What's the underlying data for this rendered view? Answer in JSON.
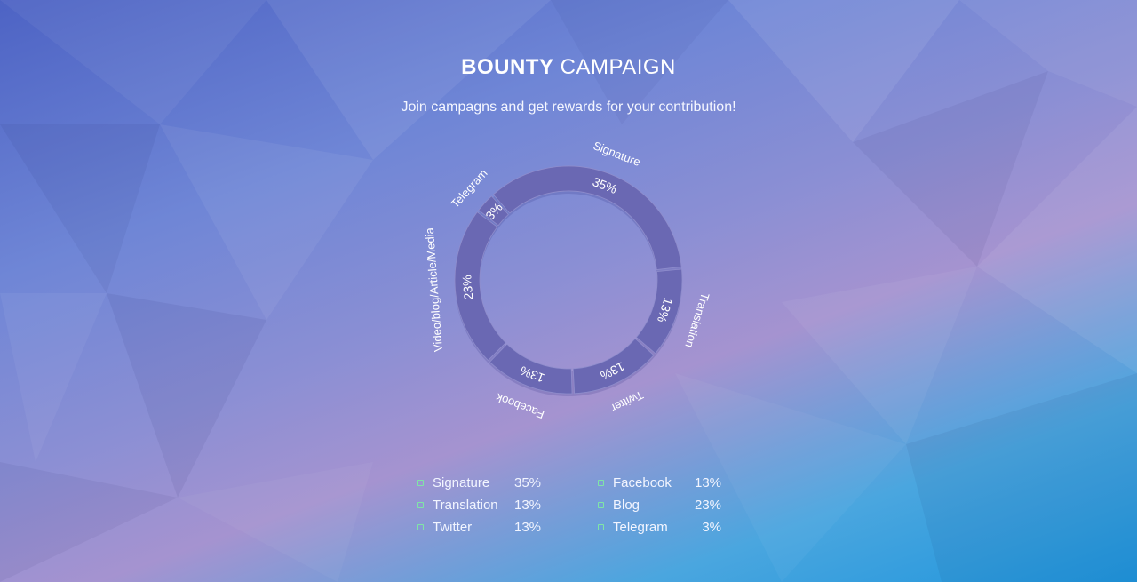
{
  "header": {
    "title_bold": "BOUNTY",
    "title_light": "CAMPAIGN",
    "subtitle": "Join campagns and get rewards for your contribution!"
  },
  "colors": {
    "ring": "#6a68b3",
    "ring_separator": "#8f8dcc",
    "legend_dot": "#7fe6a6"
  },
  "chart_data": {
    "type": "pie",
    "style": "donut",
    "slices": [
      {
        "label": "Signature",
        "value": 35,
        "value_label": "35%"
      },
      {
        "label": "Translation",
        "value": 13,
        "value_label": "13%"
      },
      {
        "label": "Twitter",
        "value": 13,
        "value_label": "13%"
      },
      {
        "label": "Facebook",
        "value": 13,
        "value_label": "13%"
      },
      {
        "label": "Video/blog/Article/Media",
        "value": 23,
        "value_label": "23%"
      },
      {
        "label": "Telegram",
        "value": 3,
        "value_label": "3%"
      }
    ]
  },
  "legend": {
    "items": [
      {
        "name": "Signature",
        "value": "35%"
      },
      {
        "name": "Translation",
        "value": "13%"
      },
      {
        "name": "Twitter",
        "value": "13%"
      },
      {
        "name": "Facebook",
        "value": "13%"
      },
      {
        "name": "Blog",
        "value": "23%"
      },
      {
        "name": "Telegram",
        "value": "3%"
      }
    ]
  }
}
